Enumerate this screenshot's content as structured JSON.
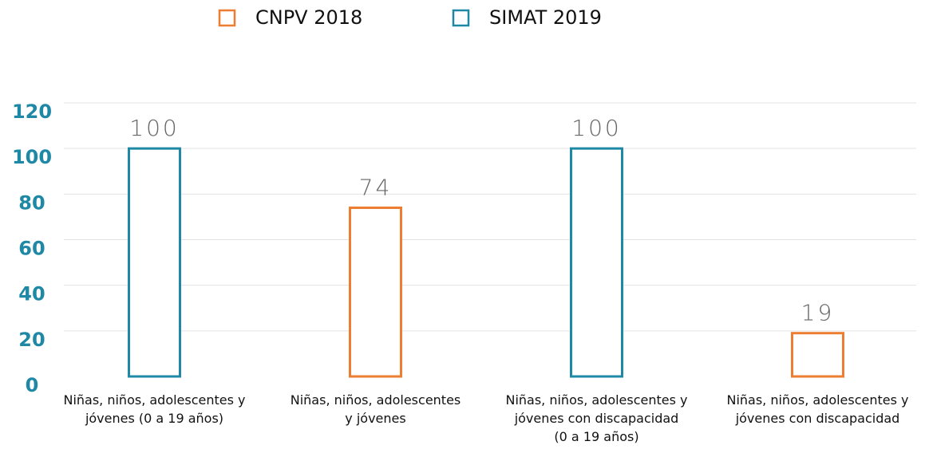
{
  "chart_data": {
    "type": "bar",
    "categories": [
      [
        "Niñas, niños, adolescentes y",
        "jóvenes  (0 a 19 años)"
      ],
      [
        "Niñas, niños, adolescentes",
        "y jóvenes"
      ],
      [
        "Niñas, niños, adolescentes y",
        "jóvenes con discapacidad",
        "(0 a 19 años)"
      ],
      [
        "Niñas, niños, adolescentes y",
        "jóvenes con discapacidad"
      ]
    ],
    "series": [
      {
        "name": "CNPV 2018",
        "color": "#ed7d31",
        "values": [
          null,
          74,
          null,
          19
        ]
      },
      {
        "name": "SIMAT 2019",
        "color": "#1f88a4",
        "values": [
          100,
          null,
          100,
          null
        ]
      }
    ],
    "ylim": [
      0,
      120
    ],
    "yticks": [
      0,
      20,
      40,
      60,
      80,
      100,
      120
    ],
    "grid": true,
    "legend": "top"
  }
}
